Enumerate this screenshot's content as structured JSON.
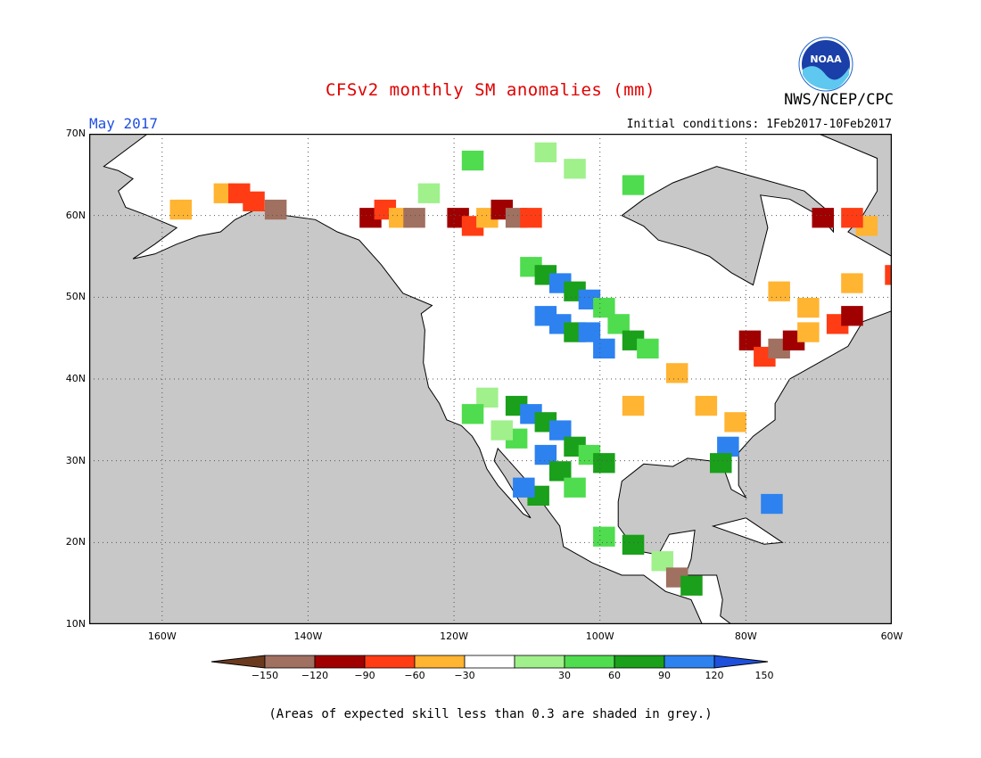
{
  "title": "CFSv2 monthly SM anomalies (mm)",
  "agency": "NWS/NCEP/CPC",
  "valid_month": "May 2017",
  "initial_conditions": "Initial conditions: 1Feb2017-10Feb2017",
  "footnote": "(Areas of expected skill less than 0.3 are shaded in grey.)",
  "logo_text": "NOAA",
  "map": {
    "lat_labels": [
      "70N",
      "60N",
      "50N",
      "40N",
      "30N",
      "20N",
      "10N"
    ],
    "lon_labels": [
      "160W",
      "140W",
      "120W",
      "100W",
      "80W",
      "60W"
    ],
    "lat_range": [
      10,
      70
    ],
    "lon_range": [
      -170,
      -60
    ],
    "ocean_color": "#c8c8c8",
    "land_color": "#ffffff",
    "grid_style": "dotted"
  },
  "colorbar": {
    "labels": [
      "−150",
      "−120",
      "−90",
      "−60",
      "−30",
      "30",
      "60",
      "90",
      "120",
      "150"
    ],
    "colors": [
      "#6b3a1e",
      "#a07060",
      "#a00000",
      "#ff3c14",
      "#ffb432",
      "#ffffff",
      "#a0f08c",
      "#4fdc4f",
      "#1aa01a",
      "#2d82f0",
      "#1e50dc"
    ]
  },
  "legend_icons": [
    "noaa-logo-icon"
  ]
}
